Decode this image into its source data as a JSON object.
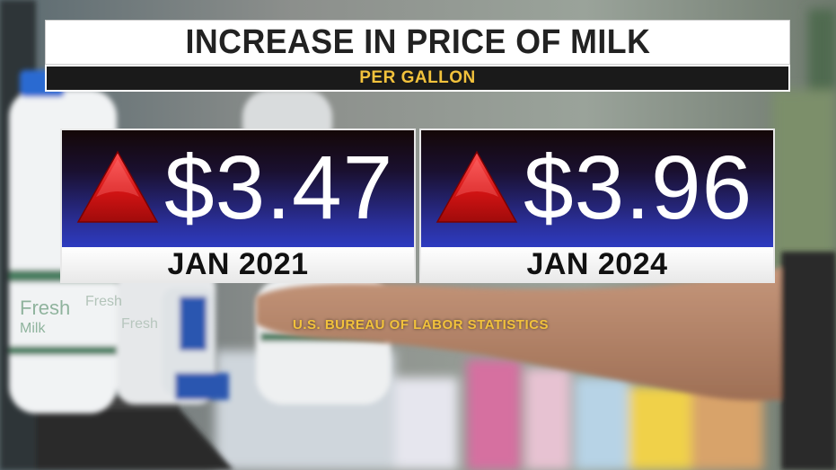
{
  "title": "INCREASE IN PRICE OF MILK",
  "subtitle": "PER GALLON",
  "cards": [
    {
      "price": "$3.47",
      "date": "JAN 2021",
      "trend_icon": "up-triangle-icon"
    },
    {
      "price": "$3.96",
      "date": "JAN 2024",
      "trend_icon": "up-triangle-icon"
    }
  ],
  "source": "U.S. BUREAU OF LABOR STATISTICS",
  "colors": {
    "accent_gold": "#f2c23c",
    "trend_red": "#d41414",
    "card_blue": "#2d3bc0"
  }
}
